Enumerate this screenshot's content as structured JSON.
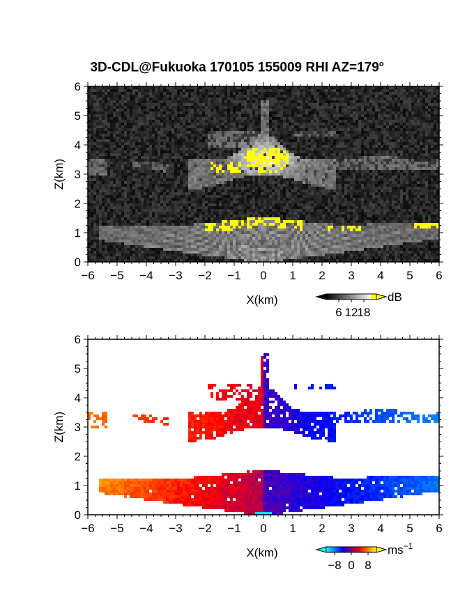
{
  "figure": {
    "title": "3D-CDL@Fukuoka 170105 155009 RHI AZ=179",
    "title_superscript": "o"
  },
  "chart_data": [
    {
      "type": "heatmap",
      "panel": "reflectivity",
      "xlabel": "X(km)",
      "ylabel": "Z(km)",
      "xlim": [
        -6,
        6
      ],
      "ylim": [
        0,
        6
      ],
      "xticks": [
        -6,
        -5,
        -4,
        -3,
        -2,
        -1,
        0,
        1,
        2,
        3,
        4,
        5,
        6
      ],
      "yticks": [
        0,
        1,
        2,
        3,
        4,
        5,
        6
      ],
      "colorbar": {
        "unit": "dB",
        "ticks": [
          6,
          12,
          18
        ],
        "range": [
          0,
          24
        ],
        "colors": [
          "#000000",
          "#ffffff",
          "#ffff00"
        ]
      },
      "background": "#333333"
    },
    {
      "type": "heatmap",
      "panel": "doppler velocity",
      "xlabel": "X(km)",
      "ylabel": "Z(km)",
      "xlim": [
        -6,
        6
      ],
      "ylim": [
        0,
        6
      ],
      "xticks": [
        -6,
        -5,
        -4,
        -3,
        -2,
        -1,
        0,
        1,
        2,
        3,
        4,
        5,
        6
      ],
      "yticks": [
        0,
        1,
        2,
        3,
        4,
        5,
        6
      ],
      "colorbar": {
        "unit": "ms",
        "unit_superscript": "−1",
        "ticks": [
          "−8",
          "0",
          "8"
        ],
        "range": [
          -12,
          12
        ],
        "colors": [
          "#00ffff",
          "#0000ff",
          "#ff0000",
          "#ffff00"
        ]
      },
      "background": "#ffffff"
    }
  ]
}
